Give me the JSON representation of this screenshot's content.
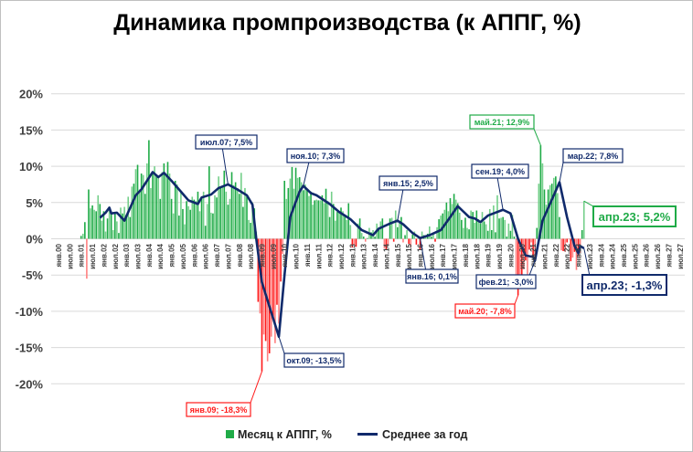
{
  "chart_data": {
    "type": "bar+line",
    "title": "Динамика промпроизводства (к АППГ, %)",
    "ylim": [
      -20,
      20
    ],
    "ytick_step": 5,
    "ytick_labels": [
      "20%",
      "15%",
      "10%",
      "5%",
      "0%",
      "-5%",
      "-10%",
      "-15%",
      "-20%"
    ],
    "grid": true,
    "legend_position": "bottom",
    "xtick_labels": [
      "янв.00",
      "июл.00",
      "янв.01",
      "июл.01",
      "янв.02",
      "июл.02",
      "янв.03",
      "июл.03",
      "янв.04",
      "июл.04",
      "янв.05",
      "июл.05",
      "янв.06",
      "июл.06",
      "янв.07",
      "июл.07",
      "янв.08",
      "июл.08",
      "янв.09",
      "июл.09",
      "янв.10",
      "июл.10",
      "янв.11",
      "июл.11",
      "янв.12",
      "июл.12",
      "янв.13",
      "июл.13",
      "янв.14",
      "июл.14",
      "янв.15",
      "июл.15",
      "янв.16",
      "июл.16",
      "янв.17",
      "июл.17",
      "янв.18",
      "июл.18",
      "янв.19",
      "июл.19",
      "янв.20",
      "июл.20",
      "янв.21",
      "июл.21",
      "янв.22",
      "июл.22",
      "янв.23",
      "июл.23",
      "янв.24",
      "июл.24",
      "янв.25",
      "июл.25",
      "янв.26",
      "июл.26",
      "янв.27",
      "июл.27"
    ],
    "colors": {
      "positive": "#1fab47",
      "positive_light": "#74cf8a",
      "negative": "#ff1a1a",
      "negative_light": "#ff8080",
      "average": "#102a6b"
    },
    "series": [
      {
        "name": "Месяц к АППГ, %",
        "type": "bar",
        "start": "2001-01",
        "values": [
          0.4,
          0.7,
          2.3,
          -5.5,
          6.8,
          4.2,
          4.6,
          4.0,
          3.8,
          6.0,
          4.8,
          2.5,
          3.8,
          1.0,
          2.8,
          4.0,
          3.8,
          1.2,
          3.6,
          2.4,
          0.8,
          4.3,
          3.5,
          4.4,
          3.3,
          5.8,
          3.0,
          7.2,
          7.6,
          9.6,
          10.2,
          6.8,
          9.0,
          8.8,
          6.2,
          10.4,
          13.6,
          7.0,
          9.3,
          10.0,
          8.8,
          8.5,
          5.5,
          9.2,
          10.4,
          8.8,
          10.6,
          9.0,
          5.5,
          3.5,
          8.0,
          7.5,
          3.2,
          6.6,
          4.1,
          2.0,
          5.2,
          4.5,
          4.0,
          5.8,
          5.4,
          5.2,
          6.5,
          3.8,
          5.6,
          6.5,
          1.8,
          4.8,
          10.0,
          3.6,
          3.5,
          6.0,
          5.7,
          8.6,
          7.0,
          7.2,
          9.4,
          6.5,
          4.7,
          5.5,
          9.2,
          7.4,
          7.8,
          7.0,
          6.2,
          9.1,
          4.4,
          7.0,
          5.8,
          2.6,
          2.2,
          5.0,
          4.2,
          1.0,
          -8.7,
          -10.3,
          -18.3,
          -13.2,
          -14.1,
          -16.9,
          -15.8,
          -13.5,
          -10.8,
          -14.4,
          -9.1,
          -11.7,
          -5.9,
          -2.1,
          8.0,
          5.5,
          7.0,
          8.3,
          9.9,
          6.9,
          9.8,
          8.4,
          8.5,
          7.8,
          6.7,
          7.5,
          6.7,
          5.9,
          6.5,
          4.7,
          5.3,
          5.4,
          5.3,
          5.3,
          6.0,
          4.9,
          6.9,
          5.2,
          3.0,
          6.5,
          4.8,
          2.5,
          3.7,
          3.7,
          4.3,
          3.8,
          3.2,
          2.6,
          4.9,
          1.9,
          -1.2,
          -0.8,
          -1.1,
          2.1,
          2.8,
          0.8,
          0.3,
          -0.4,
          0.1,
          1.5,
          0.9,
          1.2,
          0.3,
          2.1,
          1.4,
          2.4,
          2.8,
          -1.3,
          -1.5,
          -0.9,
          2.8,
          2.9,
          -0.4,
          3.9,
          1.6,
          2.3,
          3.0,
          -0.5,
          0.5,
          1.2,
          -0.7,
          -1.2,
          0.6,
          1.0,
          -0.8,
          0.4,
          -1.5,
          1.0,
          0.5,
          0.5,
          0.7,
          1.7,
          0.3,
          0.7,
          -0.4,
          1.6,
          2.7,
          3.2,
          3.5,
          4.0,
          5.0,
          3.8,
          5.6,
          4.8,
          6.2,
          5.4,
          4.9,
          3.6,
          2.6,
          1.5,
          2.9,
          1.5,
          1.3,
          3.9,
          3.7,
          2.2,
          3.9,
          2.7,
          2.1,
          3.7,
          2.4,
          2.0,
          1.1,
          4.1,
          1.2,
          4.6,
          0.9,
          6.0,
          2.8,
          2.9,
          3.0,
          2.6,
          0.3,
          2.1,
          1.1,
          3.3,
          0.3,
          -6.6,
          -7.8,
          -6.4,
          -5.0,
          -4.2,
          -3.0,
          -4.9,
          -1.5,
          -0.5,
          -2.5,
          -3.2,
          1.5,
          7.6,
          12.9,
          10.4,
          6.8,
          4.7,
          6.8,
          7.4,
          7.6,
          8.4,
          8.6,
          6.3,
          3.0,
          -1.6,
          -1.7,
          -1.8,
          -0.5,
          -0.1,
          -3.1,
          -2.6,
          -1.8,
          -4.3,
          -2.4,
          -1.9,
          1.2,
          5.2
        ]
      },
      {
        "name": "Среднее за год",
        "type": "line",
        "points": [
          [
            "2001-11",
            2.9
          ],
          [
            "2002-02",
            3.6
          ],
          [
            "2002-04",
            4.3
          ],
          [
            "2002-05",
            3.5
          ],
          [
            "2002-08",
            3.6
          ],
          [
            "2002-12",
            2.5
          ],
          [
            "2003-06",
            6.0
          ],
          [
            "2003-09",
            6.8
          ],
          [
            "2004-03",
            9.2
          ],
          [
            "2004-06",
            8.5
          ],
          [
            "2004-09",
            9.1
          ],
          [
            "2005-01",
            8.0
          ],
          [
            "2005-06",
            6.5
          ],
          [
            "2005-10",
            5.3
          ],
          [
            "2006-03",
            4.8
          ],
          [
            "2006-05",
            5.7
          ],
          [
            "2006-10",
            6.1
          ],
          [
            "2007-02",
            7.0
          ],
          [
            "2007-07",
            7.5
          ],
          [
            "2007-12",
            6.8
          ],
          [
            "2008-05",
            6.0
          ],
          [
            "2008-08",
            4.7
          ],
          [
            "2008-10",
            0.0
          ],
          [
            "2009-01",
            -6.0
          ],
          [
            "2009-10",
            -13.5
          ],
          [
            "2010-01",
            -5.0
          ],
          [
            "2010-04",
            3.0
          ],
          [
            "2010-09",
            6.5
          ],
          [
            "2010-11",
            7.3
          ],
          [
            "2011-03",
            6.3
          ],
          [
            "2011-06",
            6.0
          ],
          [
            "2012-01",
            4.8
          ],
          [
            "2012-06",
            3.7
          ],
          [
            "2012-12",
            2.7
          ],
          [
            "2013-06",
            1.2
          ],
          [
            "2013-12",
            0.5
          ],
          [
            "2014-03",
            1.4
          ],
          [
            "2014-09",
            2.1
          ],
          [
            "2015-01",
            2.5
          ],
          [
            "2015-04",
            2.0
          ],
          [
            "2015-09",
            0.8
          ],
          [
            "2016-01",
            0.1
          ],
          [
            "2016-06",
            0.5
          ],
          [
            "2016-12",
            1.2
          ],
          [
            "2017-05",
            3.0
          ],
          [
            "2017-09",
            4.5
          ],
          [
            "2018-03",
            3.0
          ],
          [
            "2018-06",
            2.8
          ],
          [
            "2018-09",
            2.3
          ],
          [
            "2019-01",
            3.2
          ],
          [
            "2019-04",
            3.5
          ],
          [
            "2019-09",
            4.0
          ],
          [
            "2020-01",
            3.5
          ],
          [
            "2020-05",
            0.0
          ],
          [
            "2020-09",
            -2.3
          ],
          [
            "2021-01",
            -2.5
          ],
          [
            "2021-02",
            -3.0
          ],
          [
            "2021-06",
            2.5
          ],
          [
            "2021-12",
            6.0
          ],
          [
            "2022-03",
            7.8
          ],
          [
            "2022-07",
            3.0
          ],
          [
            "2022-11",
            -1.0
          ],
          [
            "2023-01",
            -2.0
          ],
          [
            "2023-02",
            -1.0
          ],
          [
            "2023-04",
            -1.3
          ]
        ]
      }
    ],
    "annotations": [
      {
        "text": "июл.07; 7,5%",
        "date": "2007-07",
        "value": 7.5,
        "style": "average"
      },
      {
        "text": "ноя.10; 7,3%",
        "date": "2010-11",
        "value": 7.3,
        "style": "average"
      },
      {
        "text": "янв.15; 2,5%",
        "date": "2015-01",
        "value": 2.5,
        "style": "average"
      },
      {
        "text": "сен.19; 4,0%",
        "date": "2019-09",
        "value": 4.0,
        "style": "average"
      },
      {
        "text": "май.21; 12,9%",
        "date": "2021-05",
        "value": 12.9,
        "style": "positive"
      },
      {
        "text": "мар.22; 7,8%",
        "date": "2022-03",
        "value": 7.8,
        "style": "average"
      },
      {
        "text": "апр.23; 5,2%",
        "date": "2023-04",
        "value": 5.2,
        "style": "positive"
      },
      {
        "text": "апр.23; -1,3%",
        "date": "2023-04",
        "value": -1.3,
        "style": "average"
      },
      {
        "text": "фев.21; -3,0%",
        "date": "2021-02",
        "value": -3.0,
        "style": "average"
      },
      {
        "text": "янв.16; 0,1%",
        "date": "2016-01",
        "value": 0.1,
        "style": "average"
      },
      {
        "text": "окт.09; -13,5%",
        "date": "2009-10",
        "value": -13.5,
        "style": "average"
      },
      {
        "text": "янв.09; -18,3%",
        "date": "2009-01",
        "value": -18.3,
        "style": "negative"
      },
      {
        "text": "май.20; -7,8%",
        "date": "2020-05",
        "value": -7.8,
        "style": "negative"
      }
    ],
    "legend": [
      {
        "label": "Месяц к АППГ, %",
        "marker": "square"
      },
      {
        "label": "Среднее за год",
        "marker": "line"
      }
    ]
  }
}
